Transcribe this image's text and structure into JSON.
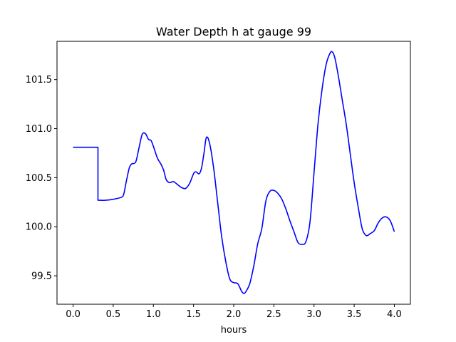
{
  "chart_data": {
    "type": "line",
    "title": "Water Depth h at gauge 99",
    "xlabel": "hours",
    "ylabel": "",
    "xlim": [
      -0.2,
      4.2
    ],
    "ylim": [
      99.21,
      101.89
    ],
    "xticks": [
      0.0,
      0.5,
      1.0,
      1.5,
      2.0,
      2.5,
      3.0,
      3.5,
      4.0
    ],
    "xtick_labels": [
      "0.0",
      "0.5",
      "1.0",
      "1.5",
      "2.0",
      "2.5",
      "3.0",
      "3.5",
      "4.0"
    ],
    "yticks": [
      99.5,
      100.0,
      100.5,
      101.0,
      101.5
    ],
    "ytick_labels": [
      "99.5",
      "100.0",
      "100.5",
      "101.0",
      "101.5"
    ],
    "grid": false,
    "series": [
      {
        "color": "#0000ff",
        "x": [
          0.0,
          0.1,
          0.2,
          0.31,
          0.31,
          0.32,
          0.4,
          0.5,
          0.6,
          0.63,
          0.66,
          0.7,
          0.73,
          0.78,
          0.82,
          0.86,
          0.9,
          0.94,
          0.97,
          1.0,
          1.05,
          1.1,
          1.13,
          1.16,
          1.2,
          1.25,
          1.3,
          1.35,
          1.4,
          1.45,
          1.5,
          1.53,
          1.57,
          1.6,
          1.63,
          1.66,
          1.7,
          1.75,
          1.8,
          1.85,
          1.9,
          1.95,
          2.0,
          2.05,
          2.1,
          2.13,
          2.16,
          2.2,
          2.25,
          2.3,
          2.35,
          2.4,
          2.45,
          2.5,
          2.55,
          2.6,
          2.65,
          2.7,
          2.75,
          2.8,
          2.85,
          2.9,
          2.95,
          3.0,
          3.05,
          3.1,
          3.15,
          3.2,
          3.23,
          3.26,
          3.3,
          3.35,
          3.4,
          3.45,
          3.5,
          3.55,
          3.6,
          3.65,
          3.7,
          3.75,
          3.8,
          3.85,
          3.9,
          3.95,
          4.0
        ],
        "y": [
          100.81,
          100.81,
          100.81,
          100.81,
          100.27,
          100.27,
          100.27,
          100.28,
          100.3,
          100.33,
          100.45,
          100.6,
          100.64,
          100.66,
          100.8,
          100.94,
          100.95,
          100.89,
          100.88,
          100.82,
          100.7,
          100.63,
          100.57,
          100.48,
          100.45,
          100.46,
          100.43,
          100.4,
          100.39,
          100.44,
          100.54,
          100.56,
          100.54,
          100.6,
          100.75,
          100.91,
          100.85,
          100.6,
          100.25,
          99.9,
          99.65,
          99.47,
          99.43,
          99.42,
          99.34,
          99.32,
          99.35,
          99.42,
          99.6,
          99.83,
          99.98,
          100.26,
          100.36,
          100.37,
          100.34,
          100.28,
          100.18,
          100.06,
          99.95,
          99.84,
          99.82,
          99.85,
          100.05,
          100.55,
          101.05,
          101.4,
          101.65,
          101.77,
          101.78,
          101.72,
          101.55,
          101.3,
          101.05,
          100.75,
          100.45,
          100.2,
          99.98,
          99.91,
          99.93,
          99.96,
          100.04,
          100.09,
          100.1,
          100.06,
          99.95
        ]
      }
    ]
  }
}
